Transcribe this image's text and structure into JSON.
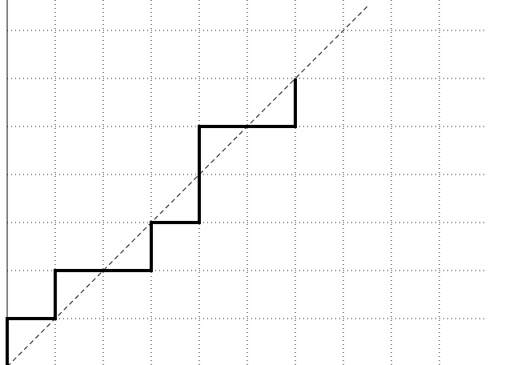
{
  "diagram": {
    "grid": {
      "columns": 10,
      "rows": 7,
      "style": "dotted",
      "color": "#000000"
    },
    "diagonal": {
      "style": "dashed",
      "color": "#000000",
      "from": [
        0,
        0
      ],
      "to": [
        7.5,
        7.5
      ]
    },
    "staircase": {
      "color": "#000000",
      "points": [
        [
          0,
          0
        ],
        [
          0,
          1
        ],
        [
          1,
          1
        ],
        [
          1,
          2
        ],
        [
          3,
          2
        ],
        [
          3,
          3
        ],
        [
          4,
          3
        ],
        [
          4,
          5
        ],
        [
          6,
          5
        ],
        [
          6,
          6
        ]
      ]
    },
    "axis": {
      "vertical_line": true,
      "color": "#000000"
    }
  }
}
